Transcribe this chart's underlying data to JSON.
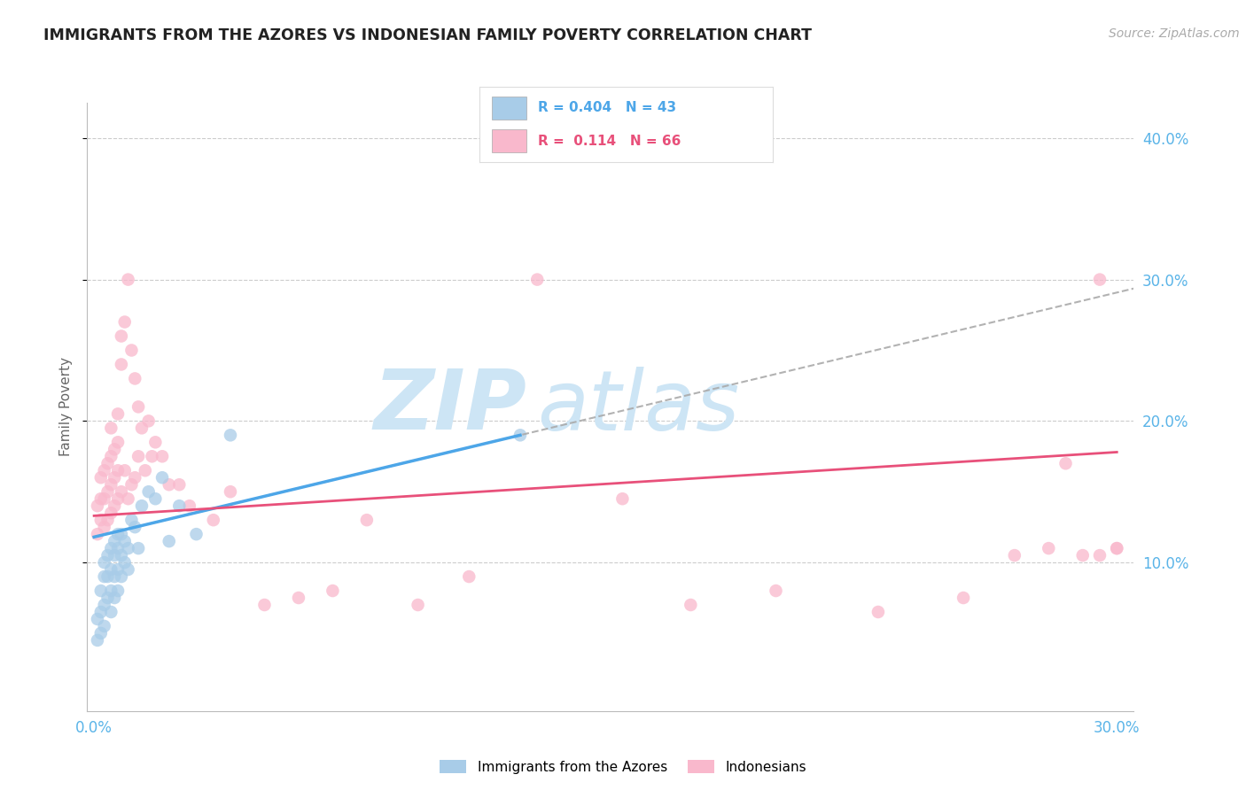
{
  "title": "IMMIGRANTS FROM THE AZORES VS INDONESIAN FAMILY POVERTY CORRELATION CHART",
  "source_text": "Source: ZipAtlas.com",
  "ylabel": "Family Poverty",
  "xlim": [
    -0.002,
    0.305
  ],
  "ylim": [
    -0.005,
    0.425
  ],
  "xticks": [
    0.0,
    0.05,
    0.1,
    0.15,
    0.2,
    0.25,
    0.3
  ],
  "xticklabels": [
    "0.0%",
    "",
    "",
    "",
    "",
    "",
    "30.0%"
  ],
  "yticks_right": [
    0.1,
    0.2,
    0.3,
    0.4
  ],
  "ytick_right_labels": [
    "10.0%",
    "20.0%",
    "30.0%",
    "40.0%"
  ],
  "legend_label1": "Immigrants from the Azores",
  "legend_label2": "Indonesians",
  "color_blue": "#a8cce8",
  "color_blue_line": "#4da6e8",
  "color_pink": "#f9b8cc",
  "color_pink_line": "#e8507a",
  "color_axis": "#5ab4e8",
  "watermark_color": "#cde5f5",
  "azores_x": [
    0.001,
    0.001,
    0.002,
    0.002,
    0.002,
    0.003,
    0.003,
    0.003,
    0.003,
    0.004,
    0.004,
    0.004,
    0.005,
    0.005,
    0.005,
    0.005,
    0.006,
    0.006,
    0.006,
    0.006,
    0.007,
    0.007,
    0.007,
    0.007,
    0.008,
    0.008,
    0.008,
    0.009,
    0.009,
    0.01,
    0.01,
    0.011,
    0.012,
    0.013,
    0.014,
    0.016,
    0.018,
    0.02,
    0.022,
    0.025,
    0.03,
    0.04,
    0.125
  ],
  "azores_y": [
    0.045,
    0.06,
    0.05,
    0.065,
    0.08,
    0.055,
    0.07,
    0.09,
    0.1,
    0.075,
    0.09,
    0.105,
    0.065,
    0.08,
    0.095,
    0.11,
    0.075,
    0.09,
    0.105,
    0.115,
    0.08,
    0.095,
    0.11,
    0.12,
    0.09,
    0.105,
    0.12,
    0.1,
    0.115,
    0.095,
    0.11,
    0.13,
    0.125,
    0.11,
    0.14,
    0.15,
    0.145,
    0.16,
    0.115,
    0.14,
    0.12,
    0.19,
    0.19
  ],
  "indonesian_x": [
    0.001,
    0.001,
    0.002,
    0.002,
    0.002,
    0.003,
    0.003,
    0.003,
    0.004,
    0.004,
    0.004,
    0.005,
    0.005,
    0.005,
    0.005,
    0.006,
    0.006,
    0.006,
    0.007,
    0.007,
    0.007,
    0.007,
    0.008,
    0.008,
    0.008,
    0.009,
    0.009,
    0.01,
    0.01,
    0.011,
    0.011,
    0.012,
    0.012,
    0.013,
    0.013,
    0.014,
    0.015,
    0.016,
    0.017,
    0.018,
    0.02,
    0.022,
    0.025,
    0.028,
    0.035,
    0.04,
    0.05,
    0.06,
    0.07,
    0.08,
    0.095,
    0.11,
    0.13,
    0.155,
    0.175,
    0.2,
    0.23,
    0.255,
    0.27,
    0.28,
    0.285,
    0.29,
    0.295,
    0.295,
    0.3,
    0.3
  ],
  "indonesian_y": [
    0.12,
    0.14,
    0.13,
    0.145,
    0.16,
    0.125,
    0.145,
    0.165,
    0.13,
    0.15,
    0.17,
    0.135,
    0.155,
    0.175,
    0.195,
    0.14,
    0.16,
    0.18,
    0.145,
    0.165,
    0.185,
    0.205,
    0.15,
    0.24,
    0.26,
    0.165,
    0.27,
    0.145,
    0.3,
    0.155,
    0.25,
    0.16,
    0.23,
    0.175,
    0.21,
    0.195,
    0.165,
    0.2,
    0.175,
    0.185,
    0.175,
    0.155,
    0.155,
    0.14,
    0.13,
    0.15,
    0.07,
    0.075,
    0.08,
    0.13,
    0.07,
    0.09,
    0.3,
    0.145,
    0.07,
    0.08,
    0.065,
    0.075,
    0.105,
    0.11,
    0.17,
    0.105,
    0.105,
    0.3,
    0.11,
    0.11
  ],
  "blue_line_x0": 0.0,
  "blue_line_x1": 0.125,
  "blue_line_y0": 0.118,
  "blue_line_y1": 0.19,
  "pink_line_x0": 0.0,
  "pink_line_x1": 0.3,
  "pink_line_y0": 0.133,
  "pink_line_y1": 0.178
}
